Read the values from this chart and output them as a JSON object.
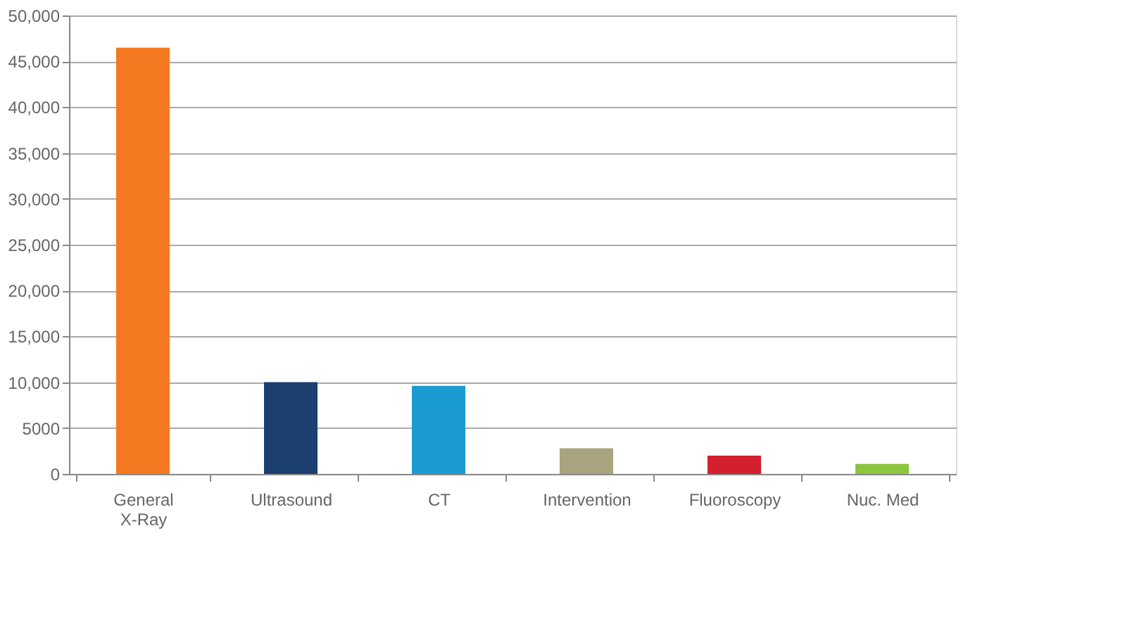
{
  "chart_data": {
    "type": "bar",
    "categories": [
      "General\nX-Ray",
      "Ultrasound",
      "CT",
      "Intervention",
      "Fluoroscopy",
      "Nuc. Med"
    ],
    "values": [
      46500,
      10000,
      9600,
      2800,
      2000,
      1100
    ],
    "colors": [
      "#f47920",
      "#1b3f6e",
      "#1a9bd2",
      "#a9a37f",
      "#d41f2e",
      "#8cc63f"
    ],
    "ylim": [
      0,
      50000
    ],
    "yticks": [
      0,
      5000,
      {
        "value": 10000,
        "label": "10,000"
      },
      {
        "value": 15000,
        "label": "15,000"
      },
      {
        "value": 20000,
        "label": "20,000"
      },
      {
        "value": 25000,
        "label": "25,000"
      },
      {
        "value": 30000,
        "label": "30,000"
      },
      {
        "value": 35000,
        "label": "35,000"
      },
      {
        "value": 40000,
        "label": "40,000"
      },
      {
        "value": 45000,
        "label": "45,000"
      },
      {
        "value": 50000,
        "label": "50,000"
      }
    ],
    "grid": "y"
  }
}
